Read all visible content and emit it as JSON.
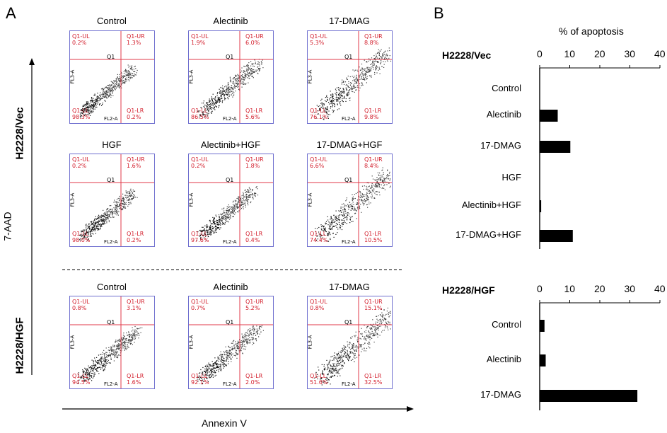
{
  "panel_a_letter": "A",
  "panel_b_letter": "B",
  "y_axis_label": "7-AAD",
  "x_axis_label": "Annexin V",
  "facs_axes": {
    "x": "FL2-A",
    "y": "FL3-A",
    "gate": "Q1"
  },
  "groups": [
    {
      "label": "H2228/Vec",
      "plots": [
        {
          "title": "Control",
          "UL": "0.2%",
          "UR": "1.3%",
          "LL": "98.3%",
          "LR": "0.2%"
        },
        {
          "title": "Alectinib",
          "UL": "1.9%",
          "UR": "6.0%",
          "LL": "86.5%",
          "LR": "5.6%"
        },
        {
          "title": "17-DMAG",
          "UL": "5.3%",
          "UR": "8.8%",
          "LL": "76.1%",
          "LR": "9.8%"
        },
        {
          "title": "HGF",
          "UL": "0.2%",
          "UR": "1.6%",
          "LL": "98.0%",
          "LR": "0.2%"
        },
        {
          "title": "Alectinib+HGF",
          "UL": "0.2%",
          "UR": "1.8%",
          "LL": "97.6%",
          "LR": "0.4%"
        },
        {
          "title": "17-DMAG+HGF",
          "UL": "6.6%",
          "UR": "8.4%",
          "LL": "74.4%",
          "LR": "10.5%"
        }
      ]
    },
    {
      "label": "H2228/HGF",
      "plots": [
        {
          "title": "Control",
          "UL": "0.8%",
          "UR": "3.1%",
          "LL": "94.5%",
          "LR": "1.6%"
        },
        {
          "title": "Alectinib",
          "UL": "0.7%",
          "UR": "5.2%",
          "LL": "92.1%",
          "LR": "2.0%"
        },
        {
          "title": "17-DMAG",
          "UL": "0.8%",
          "UR": "15.1%",
          "LL": "51.6%",
          "LR": "32.5%"
        }
      ]
    }
  ],
  "chart_data": {
    "type": "bar",
    "title": "% of apoptosis",
    "charts": [
      {
        "label": "H2228/Vec",
        "categories": [
          "Control",
          "Alectinib",
          "17-DMAG",
          "HGF",
          "Alectinib+HGF",
          "17-DMAG+HGF"
        ],
        "values": [
          0,
          6,
          10.2,
          0,
          0.5,
          11
        ],
        "xlim": [
          0,
          40
        ],
        "ticks": [
          "0",
          "10",
          "20",
          "30",
          "40"
        ]
      },
      {
        "label": "H2228/HGF",
        "categories": [
          "Control",
          "Alectinib",
          "17-DMAG"
        ],
        "values": [
          1.6,
          2.0,
          32.5
        ],
        "xlim": [
          0,
          40
        ],
        "ticks": [
          "0",
          "10",
          "20",
          "30",
          "40"
        ]
      }
    ]
  }
}
